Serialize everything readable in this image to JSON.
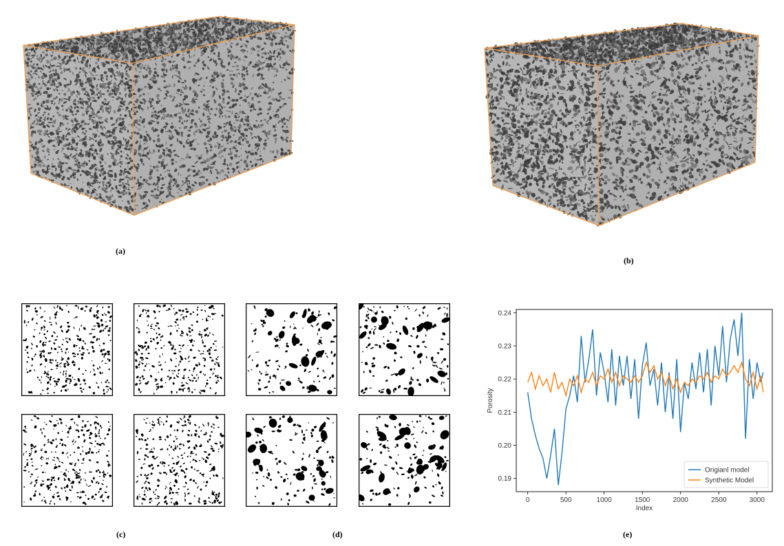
{
  "captions": {
    "a": "(a)",
    "b": "(b)",
    "c": "(c)",
    "d": "(d)",
    "e": "(e)"
  },
  "colors": {
    "box_edge": "#f0a050",
    "rock_face": "#b4b4b4",
    "pore": "#000000",
    "original_series": "#1f77b4",
    "synthetic_series": "#ff7f0e"
  },
  "slices": {
    "c": {
      "count": 4,
      "style": "fine-pores"
    },
    "d": {
      "count": 4,
      "style": "coarse-pores"
    }
  },
  "chart_data": {
    "type": "line",
    "xlabel": "Index",
    "ylabel": "Porosity",
    "xlim": [
      -150,
      3200
    ],
    "ylim": [
      0.186,
      0.241
    ],
    "xticks": [
      0,
      500,
      1000,
      1500,
      2000,
      2500,
      3000
    ],
    "yticks": [
      0.19,
      0.2,
      0.21,
      0.22,
      0.23,
      0.24
    ],
    "ytick_labels": [
      "0.19",
      "0.20",
      "0.21",
      "0.22",
      "0.23",
      "0.24"
    ],
    "legend_position": "bottom-right",
    "series": [
      {
        "name": "Origianl model",
        "color": "#1f77b4",
        "x": [
          0,
          50,
          100,
          150,
          200,
          250,
          300,
          350,
          400,
          450,
          500,
          550,
          600,
          650,
          700,
          750,
          800,
          850,
          900,
          950,
          1000,
          1050,
          1100,
          1150,
          1200,
          1250,
          1300,
          1350,
          1400,
          1450,
          1500,
          1550,
          1600,
          1650,
          1700,
          1750,
          1800,
          1850,
          1900,
          1950,
          2000,
          2050,
          2100,
          2150,
          2200,
          2250,
          2300,
          2350,
          2400,
          2450,
          2500,
          2550,
          2600,
          2650,
          2700,
          2750,
          2800,
          2850,
          2900,
          2950,
          3000,
          3050,
          3080
        ],
        "y": [
          0.216,
          0.208,
          0.203,
          0.199,
          0.196,
          0.19,
          0.197,
          0.205,
          0.188,
          0.198,
          0.211,
          0.215,
          0.221,
          0.213,
          0.233,
          0.219,
          0.226,
          0.235,
          0.215,
          0.228,
          0.222,
          0.213,
          0.229,
          0.212,
          0.227,
          0.218,
          0.227,
          0.214,
          0.226,
          0.208,
          0.224,
          0.231,
          0.218,
          0.223,
          0.212,
          0.225,
          0.21,
          0.222,
          0.208,
          0.226,
          0.204,
          0.219,
          0.214,
          0.225,
          0.217,
          0.228,
          0.216,
          0.229,
          0.212,
          0.23,
          0.221,
          0.236,
          0.219,
          0.232,
          0.238,
          0.227,
          0.24,
          0.202,
          0.226,
          0.214,
          0.225,
          0.219,
          0.222
        ]
      },
      {
        "name": "Synthetic Model",
        "color": "#ff7f0e",
        "x": [
          0,
          50,
          100,
          150,
          200,
          250,
          300,
          350,
          400,
          450,
          500,
          550,
          600,
          650,
          700,
          750,
          800,
          850,
          900,
          950,
          1000,
          1050,
          1100,
          1150,
          1200,
          1250,
          1300,
          1350,
          1400,
          1450,
          1500,
          1550,
          1600,
          1650,
          1700,
          1750,
          1800,
          1850,
          1900,
          1950,
          2000,
          2050,
          2100,
          2150,
          2200,
          2250,
          2300,
          2350,
          2400,
          2450,
          2500,
          2550,
          2600,
          2650,
          2700,
          2750,
          2800,
          2850,
          2900,
          2950,
          3000,
          3050,
          3080
        ],
        "y": [
          0.219,
          0.222,
          0.217,
          0.221,
          0.218,
          0.22,
          0.216,
          0.222,
          0.217,
          0.219,
          0.215,
          0.22,
          0.218,
          0.221,
          0.216,
          0.22,
          0.219,
          0.222,
          0.218,
          0.221,
          0.22,
          0.223,
          0.219,
          0.222,
          0.218,
          0.221,
          0.22,
          0.219,
          0.221,
          0.219,
          0.221,
          0.225,
          0.222,
          0.224,
          0.22,
          0.222,
          0.218,
          0.221,
          0.217,
          0.22,
          0.216,
          0.219,
          0.218,
          0.22,
          0.219,
          0.221,
          0.22,
          0.222,
          0.219,
          0.221,
          0.22,
          0.223,
          0.221,
          0.222,
          0.224,
          0.222,
          0.225,
          0.22,
          0.218,
          0.222,
          0.217,
          0.221,
          0.216
        ]
      }
    ]
  }
}
